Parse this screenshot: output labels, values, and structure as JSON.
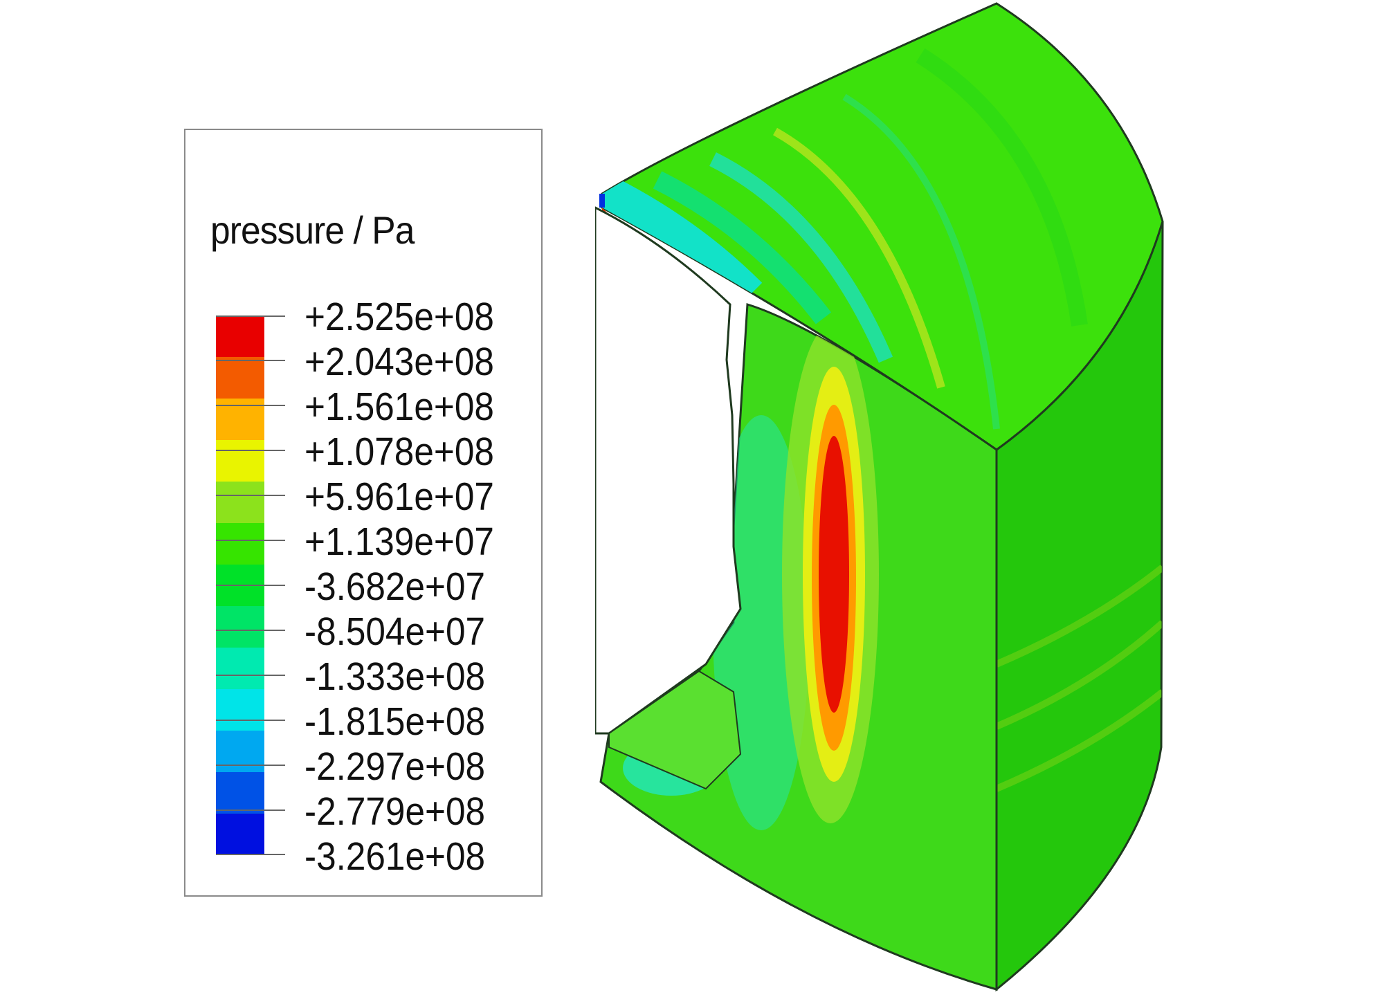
{
  "legend": {
    "title": "pressure / Pa",
    "labels": [
      "+2.525e+08",
      "+2.043e+08",
      "+1.561e+08",
      "+1.078e+08",
      "+5.961e+07",
      "+1.139e+07",
      "-3.682e+07",
      "-8.504e+07",
      "-1.333e+08",
      "-1.815e+08",
      "-2.297e+08",
      "-2.779e+08",
      "-3.261e+08"
    ],
    "colors": [
      "#e80000",
      "#f35b00",
      "#ffb300",
      "#e9f400",
      "#8ce21c",
      "#36e400",
      "#00e128",
      "#00e466",
      "#00eab0",
      "#00e4e8",
      "#00a8f0",
      "#0052e6",
      "#0010e0"
    ]
  }
}
